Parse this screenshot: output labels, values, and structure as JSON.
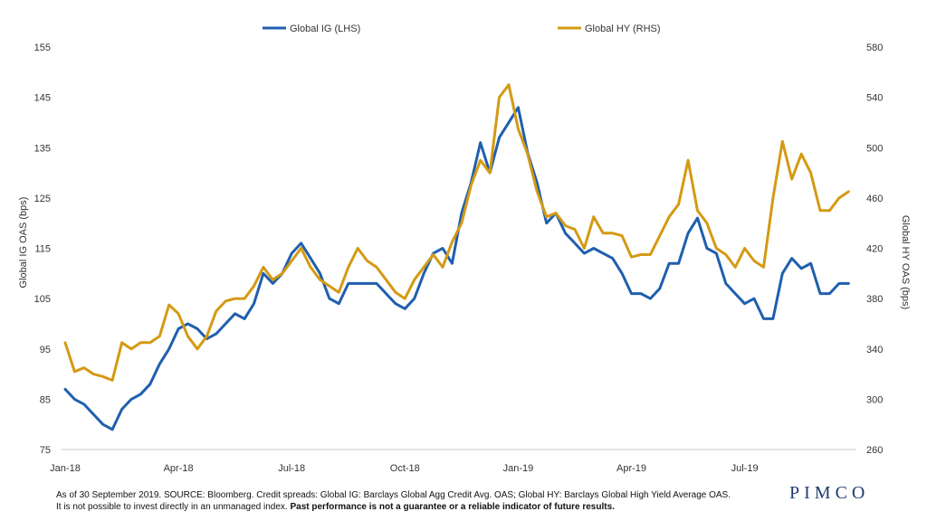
{
  "chart_data": {
    "type": "line",
    "x_start": "Jan-18",
    "x_ticks": [
      "Jan-18",
      "Apr-18",
      "Jul-18",
      "Oct-18",
      "Jan-19",
      "Apr-19",
      "Jul-19"
    ],
    "ylabel_left": "Global IG OAS (bps)",
    "ylabel_right": "Global HY OAS (bps)",
    "ylim_left": [
      75,
      155
    ],
    "ylim_right": [
      260,
      580
    ],
    "yticks_left": [
      75,
      85,
      95,
      105,
      115,
      125,
      135,
      145,
      155
    ],
    "yticks_right": [
      260,
      300,
      340,
      380,
      420,
      460,
      500,
      540,
      580
    ],
    "legend_position": "top-center",
    "grid": false,
    "series": [
      {
        "name": "Global IG (LHS)",
        "axis": "left",
        "color": "#1f5fae",
        "x_months": [
          0,
          0.25,
          0.5,
          0.75,
          1,
          1.25,
          1.5,
          1.75,
          2,
          2.25,
          2.5,
          2.75,
          3,
          3.25,
          3.5,
          3.75,
          4,
          4.25,
          4.5,
          4.75,
          5,
          5.25,
          5.5,
          5.75,
          6,
          6.25,
          6.5,
          6.75,
          7,
          7.25,
          7.5,
          7.75,
          8,
          8.25,
          8.5,
          8.75,
          9,
          9.25,
          9.5,
          9.75,
          10,
          10.25,
          10.5,
          10.75,
          11,
          11.25,
          11.5,
          11.75,
          12,
          12.25,
          12.5,
          12.75,
          13,
          13.25,
          13.5,
          13.75,
          14,
          14.25,
          14.5,
          14.75,
          15,
          15.25,
          15.5,
          15.75,
          16,
          16.25,
          16.5,
          16.75,
          17,
          17.25,
          17.5,
          17.75,
          18,
          18.25,
          18.5,
          18.75,
          19,
          19.25,
          19.5,
          19.75,
          20,
          20.25,
          20.5,
          20.75
        ],
        "values": [
          87,
          85,
          84,
          82,
          80,
          79,
          83,
          85,
          86,
          88,
          92,
          95,
          99,
          100,
          99,
          97,
          98,
          100,
          102,
          101,
          104,
          110,
          108,
          110,
          114,
          116,
          113,
          110,
          105,
          104,
          108,
          108,
          108,
          108,
          106,
          104,
          103,
          105,
          110,
          114,
          115,
          112,
          122,
          128,
          136,
          130,
          137,
          140,
          143,
          134,
          128,
          120,
          122,
          118,
          116,
          114,
          115,
          114,
          113,
          110,
          106,
          106,
          105,
          107,
          112,
          112,
          118,
          121,
          115,
          114,
          108,
          106,
          104,
          105,
          101,
          101,
          110,
          113,
          111,
          112,
          106,
          106,
          108,
          108
        ]
      },
      {
        "name": "Global HY (RHS)",
        "axis": "right",
        "color": "#d49a13",
        "x_months": [
          0,
          0.25,
          0.5,
          0.75,
          1,
          1.25,
          1.5,
          1.75,
          2,
          2.25,
          2.5,
          2.75,
          3,
          3.25,
          3.5,
          3.75,
          4,
          4.25,
          4.5,
          4.75,
          5,
          5.25,
          5.5,
          5.75,
          6,
          6.25,
          6.5,
          6.75,
          7,
          7.25,
          7.5,
          7.75,
          8,
          8.25,
          8.5,
          8.75,
          9,
          9.25,
          9.5,
          9.75,
          10,
          10.25,
          10.5,
          10.75,
          11,
          11.25,
          11.5,
          11.75,
          12,
          12.25,
          12.5,
          12.75,
          13,
          13.25,
          13.5,
          13.75,
          14,
          14.25,
          14.5,
          14.75,
          15,
          15.25,
          15.5,
          15.75,
          16,
          16.25,
          16.5,
          16.75,
          17,
          17.25,
          17.5,
          17.75,
          18,
          18.25,
          18.5,
          18.75,
          19,
          19.25,
          19.5,
          19.75,
          20,
          20.25,
          20.5,
          20.75
        ],
        "values": [
          345,
          322,
          325,
          320,
          318,
          315,
          345,
          340,
          345,
          345,
          350,
          375,
          368,
          350,
          340,
          350,
          370,
          378,
          380,
          380,
          390,
          405,
          395,
          400,
          410,
          420,
          405,
          395,
          390,
          385,
          405,
          420,
          410,
          405,
          395,
          385,
          380,
          395,
          405,
          415,
          405,
          425,
          440,
          470,
          490,
          480,
          540,
          550,
          515,
          495,
          465,
          445,
          448,
          438,
          435,
          420,
          445,
          432,
          432,
          430,
          413,
          415,
          415,
          430,
          445,
          455,
          490,
          450,
          440,
          420,
          415,
          405,
          420,
          410,
          405,
          460,
          505,
          475,
          495,
          480,
          450,
          450,
          460,
          465
        ]
      }
    ]
  },
  "footnote": {
    "line1": "As of 30 September 2019. SOURCE: Bloomberg.  Credit spreads: Global IG: Barclays Global Agg Credit Avg. OAS; Global HY: Barclays Global High Yield Average OAS.",
    "line2_plain": "It is not possible to invest directly in an unmanaged index.",
    "line2_bold": "Past performance is not a guarantee or a reliable indicator of future results."
  },
  "brand": {
    "logo_text": "PIMCO"
  }
}
